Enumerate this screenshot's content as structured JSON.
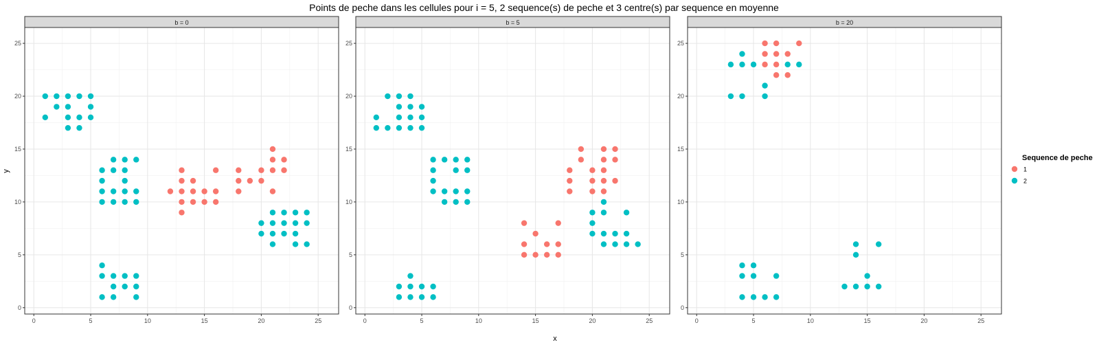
{
  "chart_data": {
    "type": "scatter",
    "title": "Points de peche dans les cellules pour i = 5, 2 sequence(s) de peche et 3 centre(s) par sequence en moyenne",
    "xlabel": "x",
    "ylabel": "y",
    "xlim": [
      -0.8,
      26.8
    ],
    "ylim": [
      -0.6,
      26.5
    ],
    "x_ticks": [
      0,
      5,
      10,
      15,
      20,
      25
    ],
    "y_ticks": [
      0,
      5,
      10,
      15,
      20,
      25
    ],
    "grid": true,
    "legend": {
      "title": "Sequence de peche",
      "position": "right",
      "entries": [
        {
          "label": "1",
          "color": "#F8766D"
        },
        {
          "label": "2",
          "color": "#00BFC4"
        }
      ]
    },
    "panels": [
      {
        "strip": "b = 0",
        "series": [
          {
            "name": "1",
            "color": "#F8766D",
            "points": [
              [
                12,
                11
              ],
              [
                13,
                13
              ],
              [
                13,
                12
              ],
              [
                13,
                11
              ],
              [
                13,
                10
              ],
              [
                13,
                9
              ],
              [
                14,
                12
              ],
              [
                14,
                11
              ],
              [
                14,
                10
              ],
              [
                15,
                11
              ],
              [
                15,
                10
              ],
              [
                16,
                13
              ],
              [
                16,
                11
              ],
              [
                16,
                10
              ],
              [
                18,
                13
              ],
              [
                18,
                12
              ],
              [
                18,
                11
              ],
              [
                19,
                12
              ],
              [
                20,
                13
              ],
              [
                20,
                12
              ],
              [
                21,
                15
              ],
              [
                21,
                14
              ],
              [
                21,
                13
              ],
              [
                21,
                11
              ],
              [
                22,
                14
              ],
              [
                22,
                13
              ]
            ]
          },
          {
            "name": "2",
            "color": "#00BFC4",
            "points": [
              [
                1,
                20
              ],
              [
                1,
                18
              ],
              [
                2,
                20
              ],
              [
                2,
                19
              ],
              [
                3,
                20
              ],
              [
                3,
                19
              ],
              [
                3,
                18
              ],
              [
                3,
                17
              ],
              [
                4,
                20
              ],
              [
                4,
                18
              ],
              [
                4,
                17
              ],
              [
                5,
                20
              ],
              [
                5,
                19
              ],
              [
                5,
                18
              ],
              [
                6,
                13
              ],
              [
                6,
                12
              ],
              [
                6,
                11
              ],
              [
                6,
                10
              ],
              [
                6,
                4
              ],
              [
                6,
                3
              ],
              [
                6,
                1
              ],
              [
                7,
                14
              ],
              [
                7,
                13
              ],
              [
                7,
                11
              ],
              [
                7,
                10
              ],
              [
                7,
                3
              ],
              [
                7,
                2
              ],
              [
                7,
                1
              ],
              [
                8,
                14
              ],
              [
                8,
                13
              ],
              [
                8,
                12
              ],
              [
                8,
                11
              ],
              [
                8,
                10
              ],
              [
                8,
                3
              ],
              [
                8,
                2
              ],
              [
                9,
                14
              ],
              [
                9,
                11
              ],
              [
                9,
                10
              ],
              [
                9,
                3
              ],
              [
                9,
                2
              ],
              [
                9,
                1
              ],
              [
                20,
                8
              ],
              [
                20,
                7
              ],
              [
                21,
                9
              ],
              [
                21,
                8
              ],
              [
                21,
                7
              ],
              [
                21,
                6
              ],
              [
                22,
                9
              ],
              [
                22,
                8
              ],
              [
                22,
                7
              ],
              [
                23,
                9
              ],
              [
                23,
                8
              ],
              [
                23,
                7
              ],
              [
                23,
                6
              ],
              [
                24,
                9
              ],
              [
                24,
                8
              ],
              [
                24,
                6
              ]
            ]
          }
        ]
      },
      {
        "strip": "b = 5",
        "series": [
          {
            "name": "1",
            "color": "#F8766D",
            "points": [
              [
                14,
                8
              ],
              [
                14,
                6
              ],
              [
                14,
                5
              ],
              [
                15,
                7
              ],
              [
                15,
                5
              ],
              [
                16,
                6
              ],
              [
                16,
                5
              ],
              [
                17,
                8
              ],
              [
                17,
                6
              ],
              [
                17,
                5
              ],
              [
                18,
                13
              ],
              [
                18,
                12
              ],
              [
                18,
                11
              ],
              [
                19,
                15
              ],
              [
                19,
                14
              ],
              [
                20,
                13
              ],
              [
                20,
                12
              ],
              [
                20,
                11
              ],
              [
                21,
                15
              ],
              [
                21,
                14
              ],
              [
                21,
                13
              ],
              [
                21,
                12
              ],
              [
                21,
                11
              ],
              [
                22,
                15
              ],
              [
                22,
                14
              ],
              [
                22,
                12
              ]
            ]
          },
          {
            "name": "2",
            "color": "#00BFC4",
            "points": [
              [
                1,
                18
              ],
              [
                1,
                17
              ],
              [
                2,
                20
              ],
              [
                2,
                17
              ],
              [
                3,
                20
              ],
              [
                3,
                19
              ],
              [
                3,
                18
              ],
              [
                3,
                17
              ],
              [
                4,
                20
              ],
              [
                4,
                19
              ],
              [
                4,
                18
              ],
              [
                4,
                17
              ],
              [
                5,
                19
              ],
              [
                5,
                18
              ],
              [
                5,
                17
              ],
              [
                3,
                2
              ],
              [
                3,
                1
              ],
              [
                4,
                3
              ],
              [
                4,
                2
              ],
              [
                4,
                1
              ],
              [
                5,
                2
              ],
              [
                5,
                1
              ],
              [
                6,
                2
              ],
              [
                6,
                1
              ],
              [
                6,
                14
              ],
              [
                6,
                13
              ],
              [
                6,
                12
              ],
              [
                6,
                11
              ],
              [
                7,
                14
              ],
              [
                7,
                11
              ],
              [
                7,
                10
              ],
              [
                8,
                14
              ],
              [
                8,
                13
              ],
              [
                8,
                11
              ],
              [
                8,
                10
              ],
              [
                9,
                14
              ],
              [
                9,
                13
              ],
              [
                9,
                11
              ],
              [
                9,
                10
              ],
              [
                20,
                9
              ],
              [
                20,
                8
              ],
              [
                20,
                7
              ],
              [
                21,
                10
              ],
              [
                21,
                9
              ],
              [
                21,
                7
              ],
              [
                21,
                6
              ],
              [
                22,
                7
              ],
              [
                22,
                6
              ],
              [
                23,
                9
              ],
              [
                23,
                7
              ],
              [
                23,
                6
              ],
              [
                24,
                6
              ]
            ]
          }
        ]
      },
      {
        "strip": "b = 20",
        "series": [
          {
            "name": "1",
            "color": "#F8766D",
            "points": [
              [
                6,
                25
              ],
              [
                6,
                24
              ],
              [
                6,
                23
              ],
              [
                7,
                25
              ],
              [
                7,
                24
              ],
              [
                7,
                23
              ],
              [
                7,
                22
              ],
              [
                8,
                24
              ],
              [
                8,
                22
              ],
              [
                9,
                25
              ]
            ]
          },
          {
            "name": "2",
            "color": "#00BFC4",
            "points": [
              [
                3,
                23
              ],
              [
                3,
                20
              ],
              [
                4,
                24
              ],
              [
                4,
                23
              ],
              [
                4,
                20
              ],
              [
                5,
                23
              ],
              [
                6,
                21
              ],
              [
                6,
                20
              ],
              [
                8,
                23
              ],
              [
                9,
                23
              ],
              [
                4,
                4
              ],
              [
                4,
                3
              ],
              [
                4,
                1
              ],
              [
                5,
                4
              ],
              [
                5,
                3
              ],
              [
                5,
                1
              ],
              [
                6,
                1
              ],
              [
                7,
                3
              ],
              [
                7,
                1
              ],
              [
                13,
                2
              ],
              [
                14,
                6
              ],
              [
                14,
                5
              ],
              [
                14,
                2
              ],
              [
                15,
                3
              ],
              [
                15,
                2
              ],
              [
                16,
                6
              ],
              [
                16,
                2
              ]
            ]
          }
        ]
      }
    ]
  }
}
